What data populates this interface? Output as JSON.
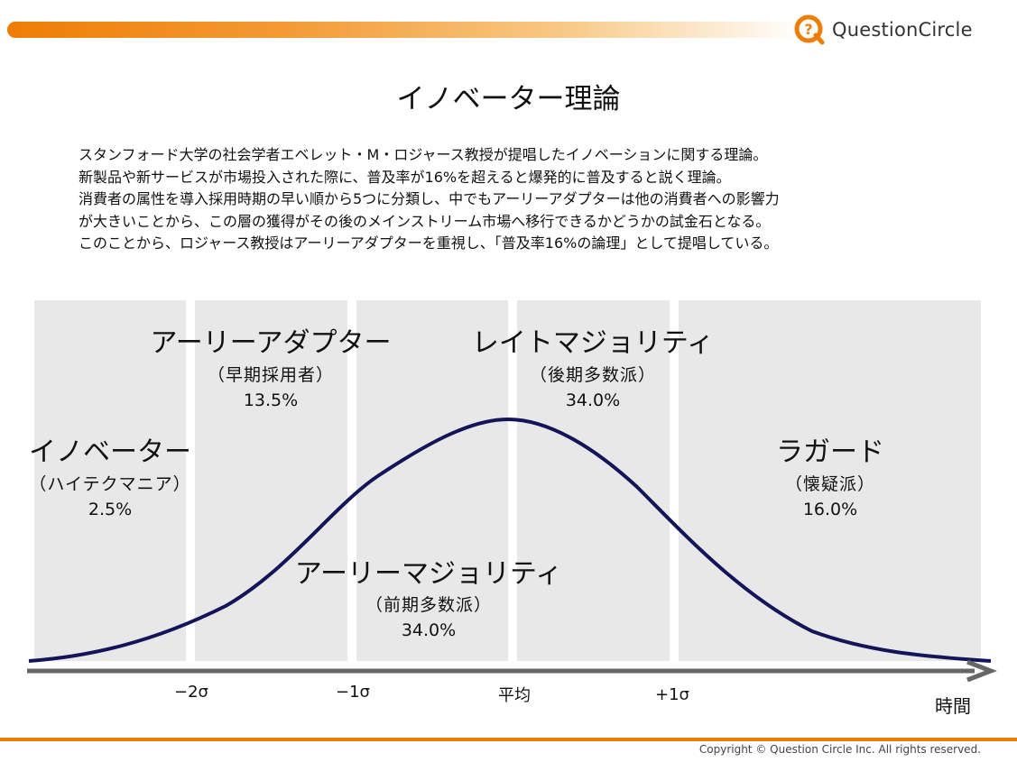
{
  "header": {
    "logo_text": "QuestionCircle",
    "accent_color": "#ee7d05"
  },
  "title": "イノベーター理論",
  "description": [
    "スタンフォード大学の社会学者エベレット・M・ロジャース教授が提唱したイノベーションに関する理論。",
    "新製品や新サービスが市場投入された際に、普及率が16%を超えると爆発的に普及すると説く理論。",
    "消費者の属性を導入採用時期の早い順から5つに分類し、中でもアーリーアダプターは他の消費者への影響力",
    "が大きいことから、この層の獲得がその後のメインストリーム市場へ移行できるかどうかの試金石となる。",
    "このことから、ロジャース教授はアーリーアダプターを重視し、「普及率16%の論理」として提唱している。"
  ],
  "segments": [
    {
      "name": "イノベーター",
      "sub": "（ハイテクマニア）",
      "percent": "2.5%"
    },
    {
      "name": "アーリーアダプター",
      "sub": "（早期採用者）",
      "percent": "13.5%"
    },
    {
      "name": "アーリーマジョリティ",
      "sub": "（前期多数派）",
      "percent": "34.0%"
    },
    {
      "name": "レイトマジョリティ",
      "sub": "（後期多数派）",
      "percent": "34.0%"
    },
    {
      "name": "ラガード",
      "sub": "（懐疑派）",
      "percent": "16.0%"
    }
  ],
  "axis": {
    "ticks": [
      "−2σ",
      "−1σ",
      "平均",
      "+1σ"
    ],
    "label": "時間"
  },
  "colors": {
    "curve": "#141459",
    "band": "#e8e8e8",
    "axis": "#666666"
  },
  "footer": {
    "copyright": "Copyright © Question Circle Inc. All rights reserved."
  }
}
